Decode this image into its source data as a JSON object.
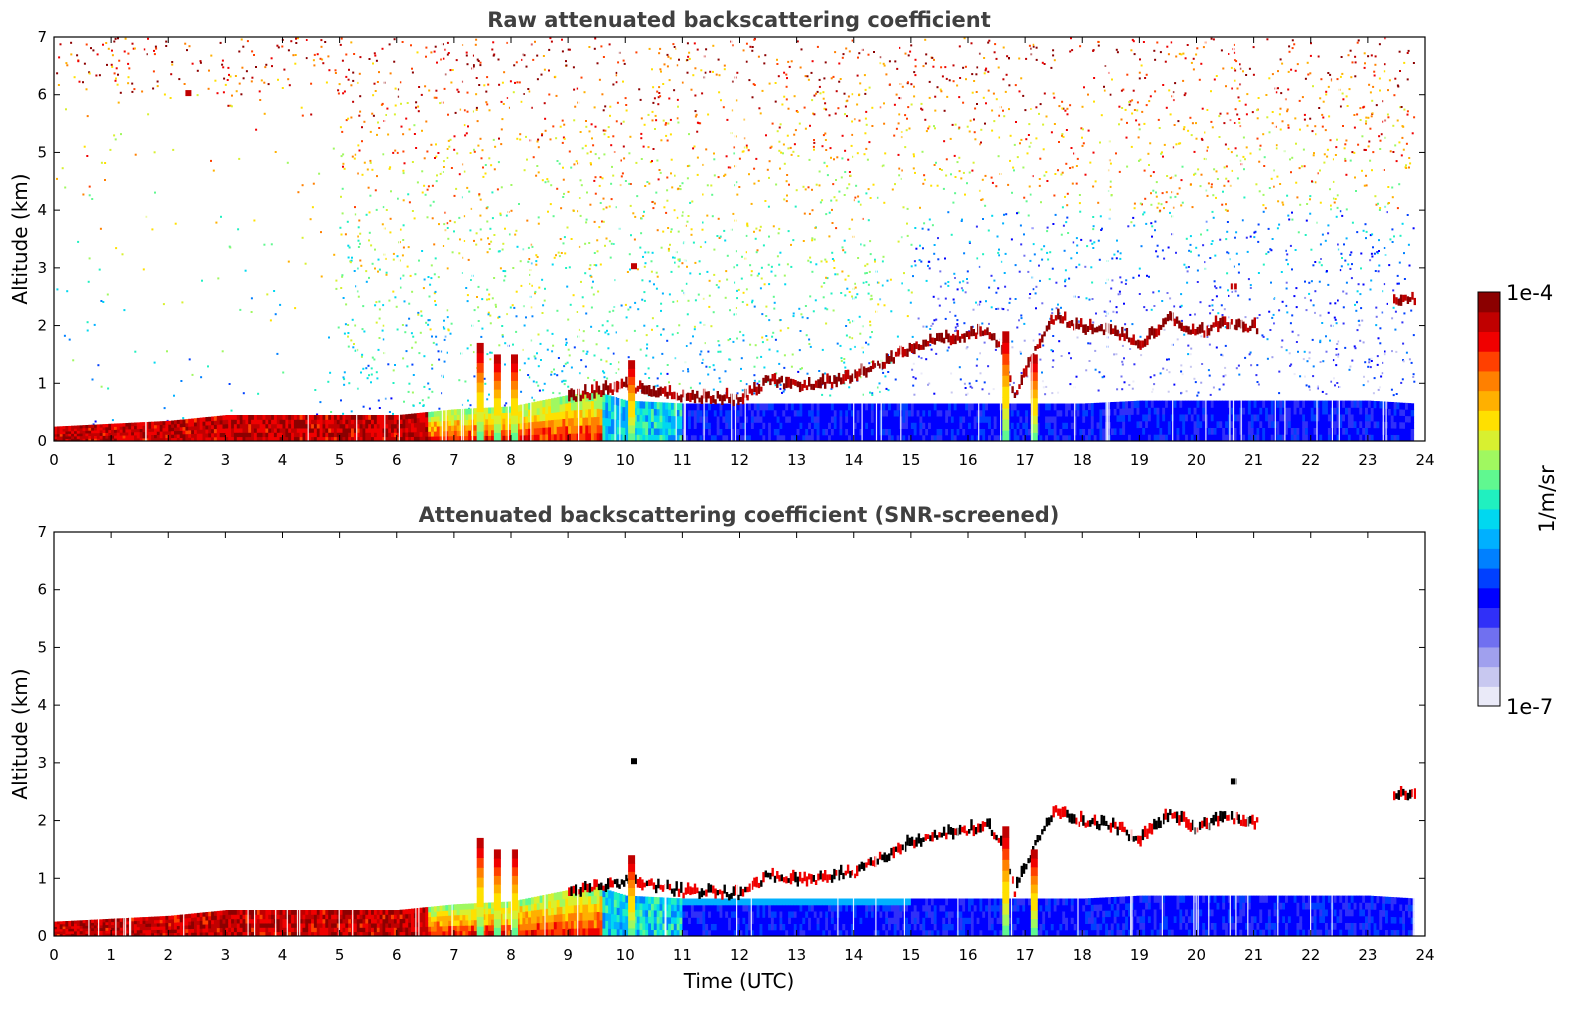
{
  "chart_data": [
    {
      "type": "heatmap",
      "title": "Raw attenuated backscattering coefficient",
      "xlabel": "",
      "ylabel": "Altitude (km)",
      "xlim": [
        0,
        24
      ],
      "ylim": [
        0,
        7
      ],
      "xticks": [
        "0",
        "1",
        "2",
        "3",
        "4",
        "5",
        "6",
        "7",
        "8",
        "9",
        "10",
        "11",
        "12",
        "13",
        "14",
        "15",
        "16",
        "17",
        "18",
        "19",
        "20",
        "21",
        "22",
        "23",
        "24"
      ],
      "yticks": [
        "0",
        "1",
        "2",
        "3",
        "4",
        "5",
        "6",
        "7"
      ],
      "noise": true,
      "layers": [
        {
          "name": "near-surface aerosol",
          "x": [
            0,
            1,
            2,
            3,
            4,
            5,
            6,
            7,
            8,
            9,
            9.5,
            10,
            11,
            12,
            13,
            14,
            15,
            16,
            17,
            18,
            19,
            20,
            21,
            22,
            23,
            23.8
          ],
          "top_km": [
            0.25,
            0.3,
            0.35,
            0.45,
            0.45,
            0.45,
            0.45,
            0.55,
            0.6,
            0.8,
            0.85,
            0.7,
            0.65,
            0.65,
            0.65,
            0.65,
            0.65,
            0.65,
            0.65,
            0.65,
            0.7,
            0.7,
            0.7,
            0.7,
            0.7,
            0.65
          ]
        },
        {
          "name": "cloud layer",
          "x": [
            9.0,
            9.8,
            10.0,
            10.5,
            11.0,
            11.5,
            12.0,
            12.5,
            13.0,
            13.5,
            14.0,
            14.5,
            15.0,
            15.5,
            16.0,
            16.3,
            16.6,
            16.8,
            17.2,
            17.5,
            18.0,
            18.5,
            19.0,
            19.5,
            20.0,
            20.5,
            21.0,
            23.5,
            23.8
          ],
          "alt_km": [
            0.7,
            0.85,
            0.9,
            0.8,
            0.7,
            0.7,
            0.65,
            1.0,
            0.9,
            0.95,
            1.05,
            1.3,
            1.55,
            1.7,
            1.75,
            1.9,
            1.5,
            0.7,
            1.6,
            2.1,
            1.9,
            1.85,
            1.6,
            2.05,
            1.8,
            2.0,
            1.9,
            2.4,
            2.4
          ]
        }
      ]
    },
    {
      "type": "heatmap",
      "title": "Attenuated backscattering coefficient (SNR-screened)",
      "xlabel": "Time (UTC)",
      "ylabel": "Altitude (km)",
      "xlim": [
        0,
        24
      ],
      "ylim": [
        0,
        7
      ],
      "xticks": [
        "0",
        "1",
        "2",
        "3",
        "4",
        "5",
        "6",
        "7",
        "8",
        "9",
        "10",
        "11",
        "12",
        "13",
        "14",
        "15",
        "16",
        "17",
        "18",
        "19",
        "20",
        "21",
        "22",
        "23",
        "24"
      ],
      "yticks": [
        "0",
        "1",
        "2",
        "3",
        "4",
        "5",
        "6",
        "7"
      ],
      "noise": false
    }
  ],
  "colorbar": {
    "label": "1/m/sr",
    "max_label": "1e-4",
    "min_label": "1e-7",
    "colors": [
      "#eaeaf8",
      "#c8c8f0",
      "#a0a0ee",
      "#7070f0",
      "#3030f8",
      "#0000ff",
      "#0040ff",
      "#0080ff",
      "#00b0ff",
      "#00d8f0",
      "#20f0c0",
      "#60f890",
      "#a0f860",
      "#d8f030",
      "#ffe000",
      "#ffb000",
      "#ff8000",
      "#ff4000",
      "#f00000",
      "#c00000",
      "#8b0000"
    ]
  },
  "colors": {
    "low_blue": "#1a40f0",
    "cyan": "#00d0e0",
    "yellow": "#ffe000",
    "orange": "#ff8000",
    "red": "#e00000",
    "dark_red": "#8b0000"
  }
}
